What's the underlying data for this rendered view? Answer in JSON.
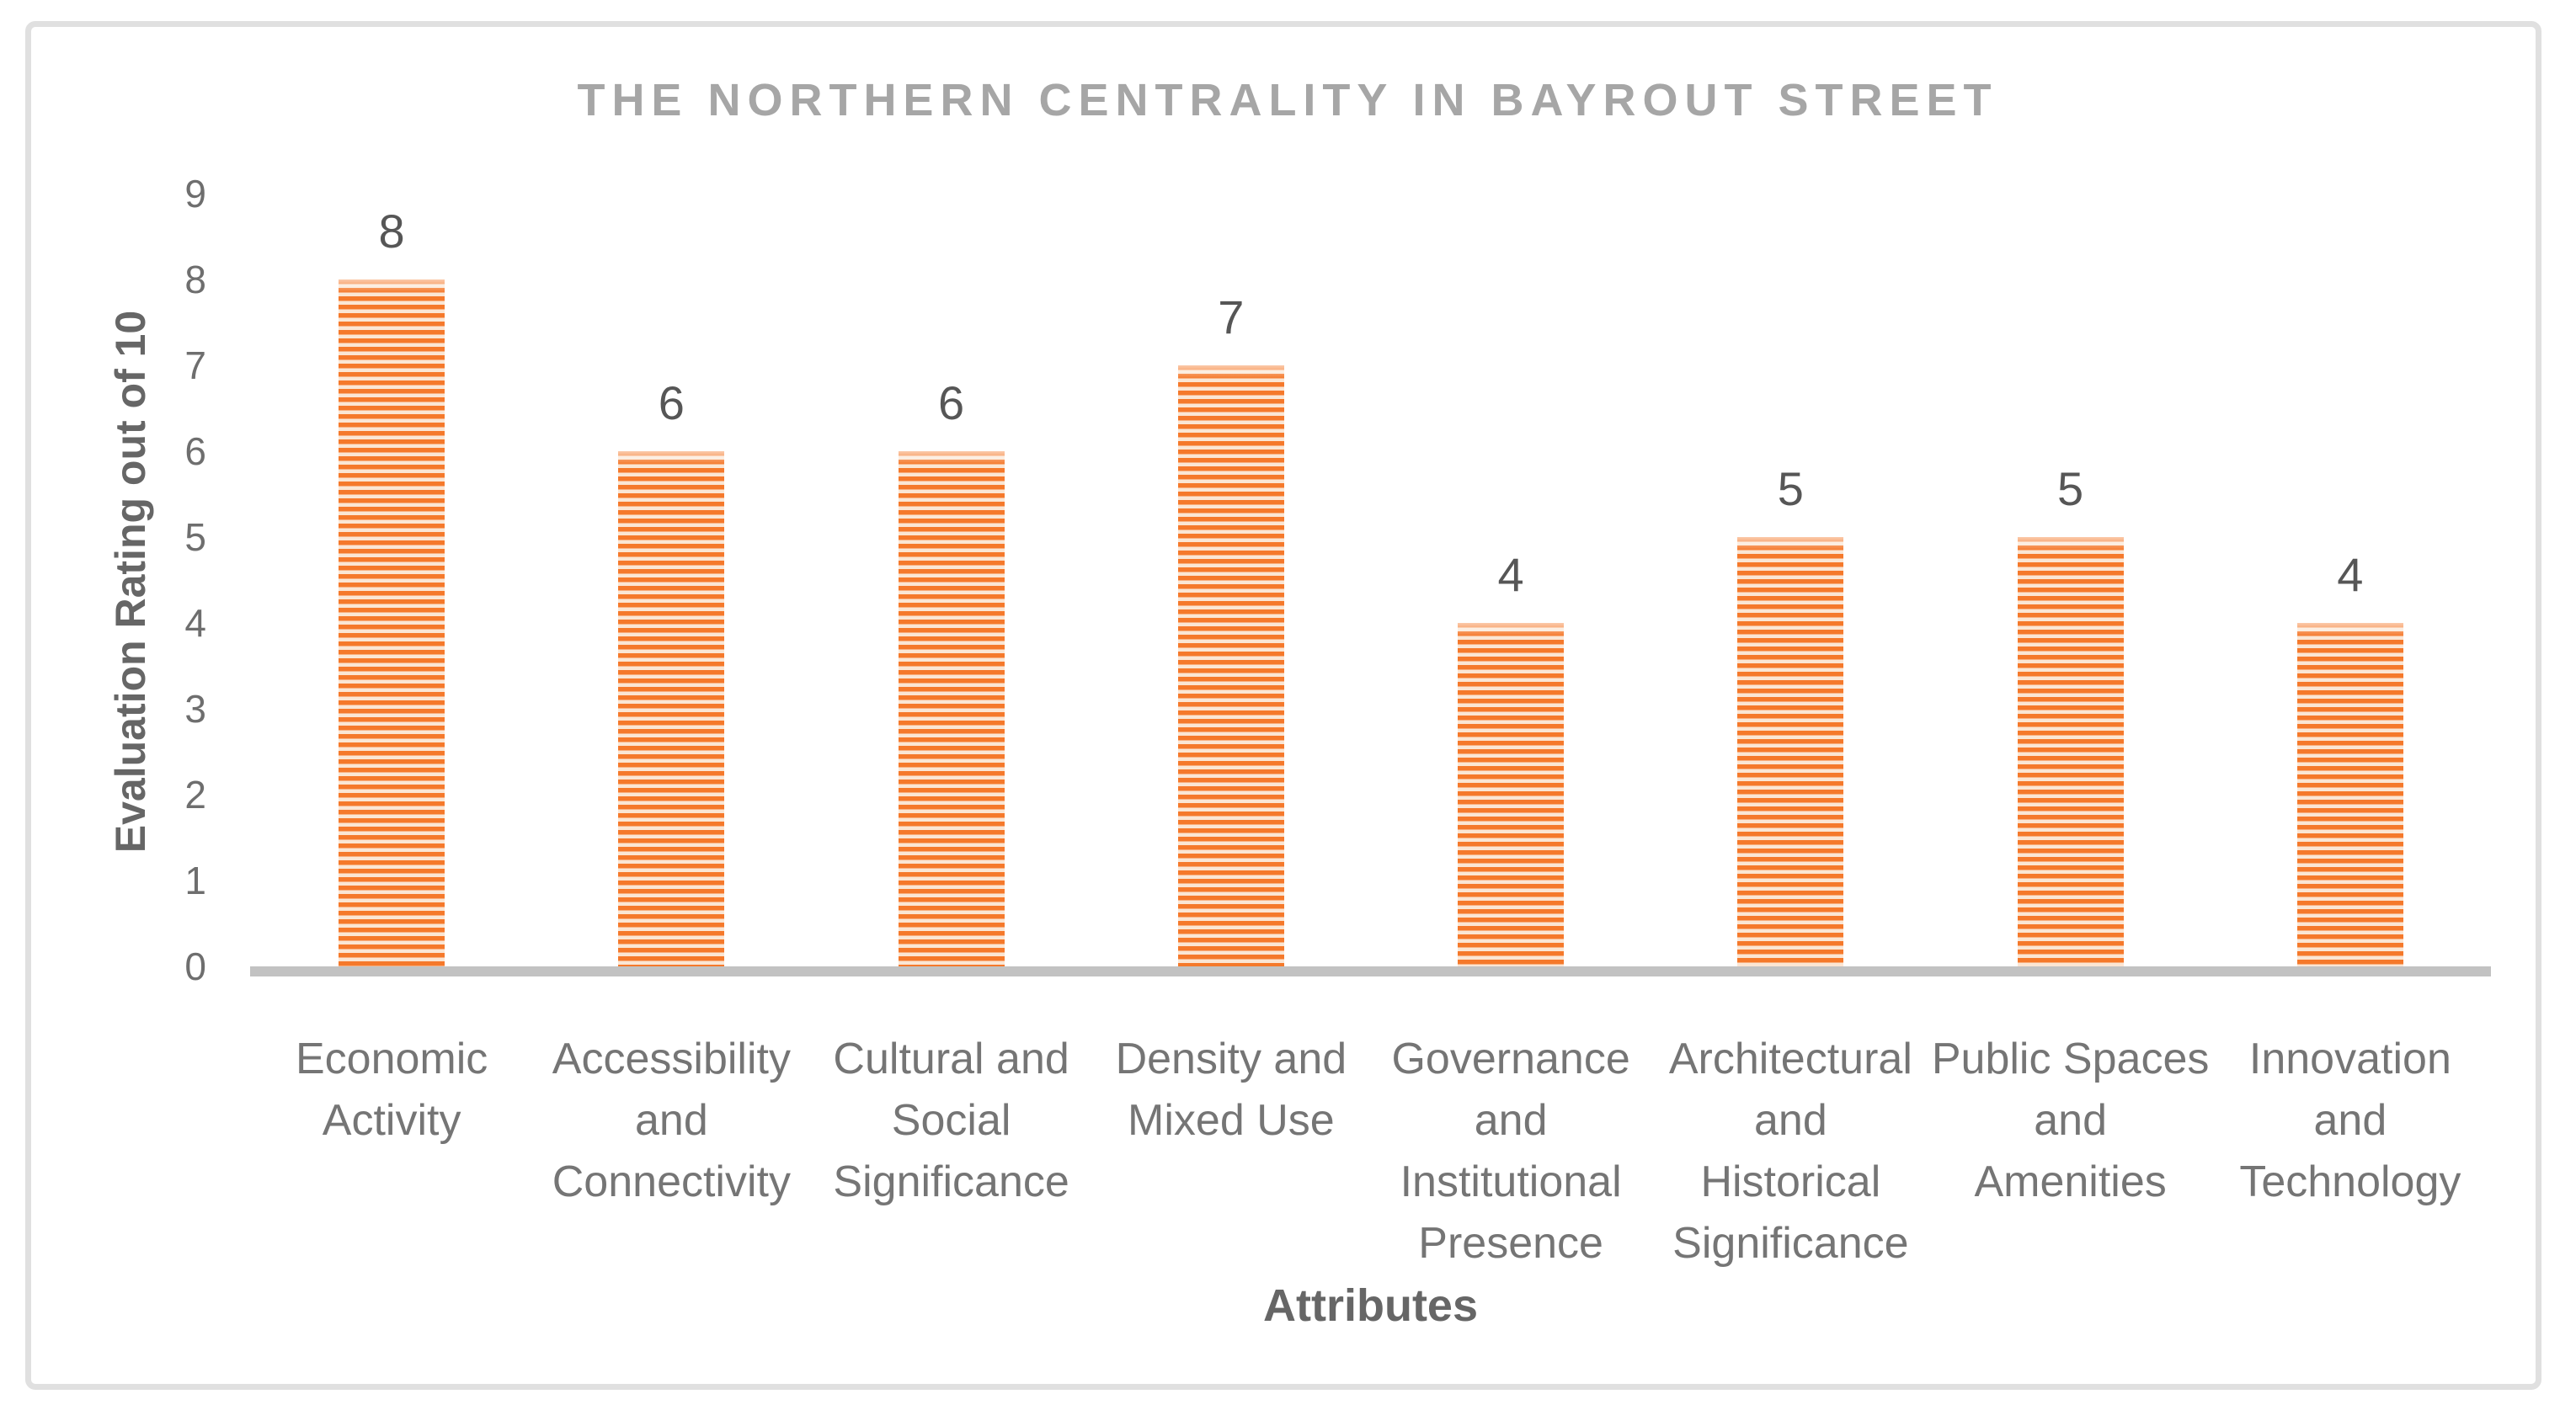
{
  "frame": {
    "border_color": "#e0e0e0",
    "background": "#ffffff"
  },
  "colors": {
    "title": "#a6a6a6",
    "axis_titles": "#666666",
    "tick_labels": "#6e6e6e",
    "category_labels": "#757575",
    "data_labels": "#565656",
    "axis_line": "#c2c2c2",
    "bar_stripe": "#f5792b",
    "bar_stripe_gap": "#fbe6d4"
  },
  "chart_data": {
    "type": "bar",
    "title": "THE NORTHERN CENTRALITY IN BAYROUT STREET",
    "xlabel": "Attributes",
    "ylabel": "Evaluation Rating out of 10",
    "ylim": [
      0,
      9
    ],
    "yticks": [
      0,
      1,
      2,
      3,
      4,
      5,
      6,
      7,
      8,
      9
    ],
    "grid": false,
    "legend": false,
    "bar_pattern": "light-horizontal-stripes",
    "categories": [
      "Economic Activity",
      "Accessibility and Connectivity",
      "Cultural and Social Significance",
      "Density and Mixed Use",
      "Governance and Institutional Presence",
      "Architectural and Historical Significance",
      "Public Spaces and Amenities",
      "Innovation and Technology"
    ],
    "categories_wrapped": [
      [
        "Economic",
        "Activity"
      ],
      [
        "Accessibility",
        "and",
        "Connectivity"
      ],
      [
        "Cultural and",
        "Social",
        "Significance"
      ],
      [
        "Density and",
        "Mixed Use"
      ],
      [
        "Governance",
        "and",
        "Institutional",
        "Presence"
      ],
      [
        "Architectural",
        "and",
        "Historical",
        "Significance"
      ],
      [
        "Public Spaces",
        "and",
        "Amenities"
      ],
      [
        "Innovation",
        "and",
        "Technology"
      ]
    ],
    "values": [
      8,
      6,
      6,
      7,
      4,
      5,
      5,
      4
    ],
    "data_labels": [
      "8",
      "6",
      "6",
      "7",
      "4",
      "5",
      "5",
      "4"
    ]
  }
}
